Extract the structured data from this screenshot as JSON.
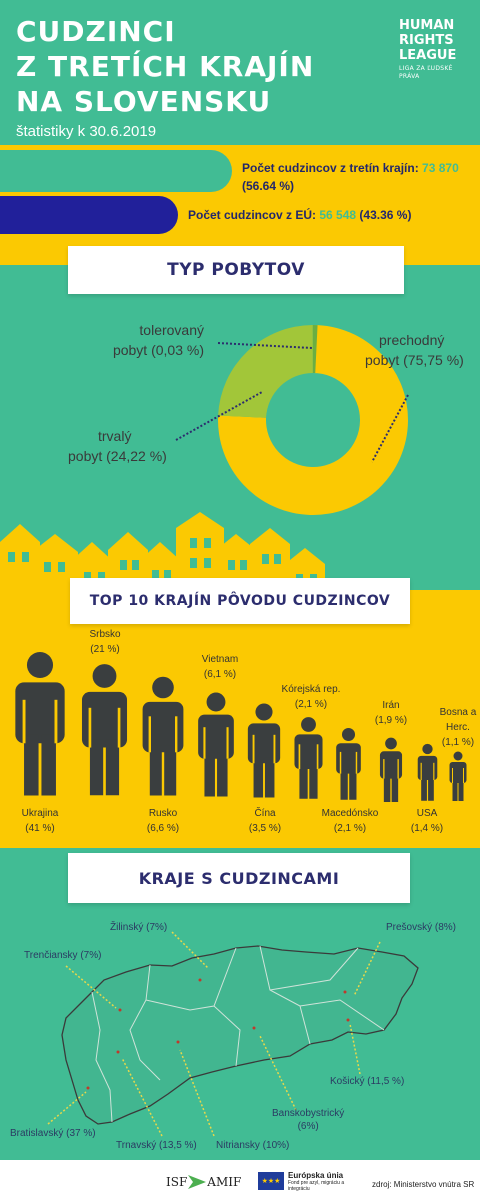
{
  "header": {
    "title_lines": [
      "CUDZINCI",
      "Z TRETÍCH KRAJÍN",
      "NA SLOVENSKU"
    ],
    "date": "štatistiky k 30.6.2019"
  },
  "logo": {
    "lines": [
      "HUMAN",
      "RIGHTS",
      "LEAGUE"
    ],
    "subtitle": "LIGA ZA ĽUDSKÉ PRÁVA"
  },
  "stats": {
    "third_label": "Počet cudzincov z tretín krajín:",
    "third_value": "73 870",
    "third_pct": "(56.64 %)",
    "eu_label": "Počet cudzincov z EÚ:",
    "eu_value": "56 548",
    "eu_pct": "(43.36 %)"
  },
  "sections": {
    "residence_title": "TYP POBYTOV",
    "countries_title": "TOP 10 KRAJÍN PÔVODU CUDZINCOV",
    "regions_title": "KRAJE S CUDZINCAMI"
  },
  "residence": {
    "colors": {
      "prechodny": "#fbc902",
      "trvaly": "#a2c639",
      "tolerovany": "#6aae42"
    },
    "labels": {
      "tolerovany_1": "tolerovaný",
      "tolerovany_2": "pobyt (0,03 %)",
      "prechodny_1": "prechodný",
      "prechodny_2": "pobyt (75,75 %)",
      "trvaly_1": "trvalý",
      "trvaly_2": "pobyt (24,22 %)"
    }
  },
  "chart_data": {
    "type": "pie",
    "labels": [
      "prechodný pobyt",
      "trvalý pobyt",
      "tolerovaný pobyt"
    ],
    "values": [
      75.75,
      24.22,
      0.03
    ]
  },
  "countries": [
    {
      "name": "Ukrajina",
      "pct": "(41 %)"
    },
    {
      "name": "Srbsko",
      "pct": "(21 %)"
    },
    {
      "name": "Rusko",
      "pct": "(6,6 %)"
    },
    {
      "name": "Vietnam",
      "pct": "(6,1 %)"
    },
    {
      "name": "Čína",
      "pct": "(3,5 %)"
    },
    {
      "name": "Kórejská rep.",
      "pct": "(2,1 %)"
    },
    {
      "name": "Macedónsko",
      "pct": "(2,1 %)"
    },
    {
      "name": "Irán",
      "pct": "(1,9 %)"
    },
    {
      "name": "USA",
      "pct": "(1,4 %)"
    },
    {
      "name": "Bosna a",
      "name2": "Herc.",
      "pct": "(1,1 %)"
    }
  ],
  "regions": {
    "zilinsky": "Žilinský (7%)",
    "presovsky": "Prešovský (8%)",
    "trenciansky": "Trenčiansky (7%)",
    "kosicky": "Košický (11,5 %)",
    "banskobystricky_1": "Banskobystrický",
    "banskobystricky_2": "(6%)",
    "bratislavsky": "Bratislavský (37 %)",
    "trnavsky": "Trnavský (13,5 %)",
    "nitriansky": "Nitriansky (10%)"
  },
  "footer": {
    "isf": "ISF",
    "amif": "AMIF",
    "eu_title": "Európska únia",
    "eu_sub": "Fond pre azyl, migráciu a integráciu",
    "source": "zdroj: Ministerstvo vnútra SR"
  }
}
